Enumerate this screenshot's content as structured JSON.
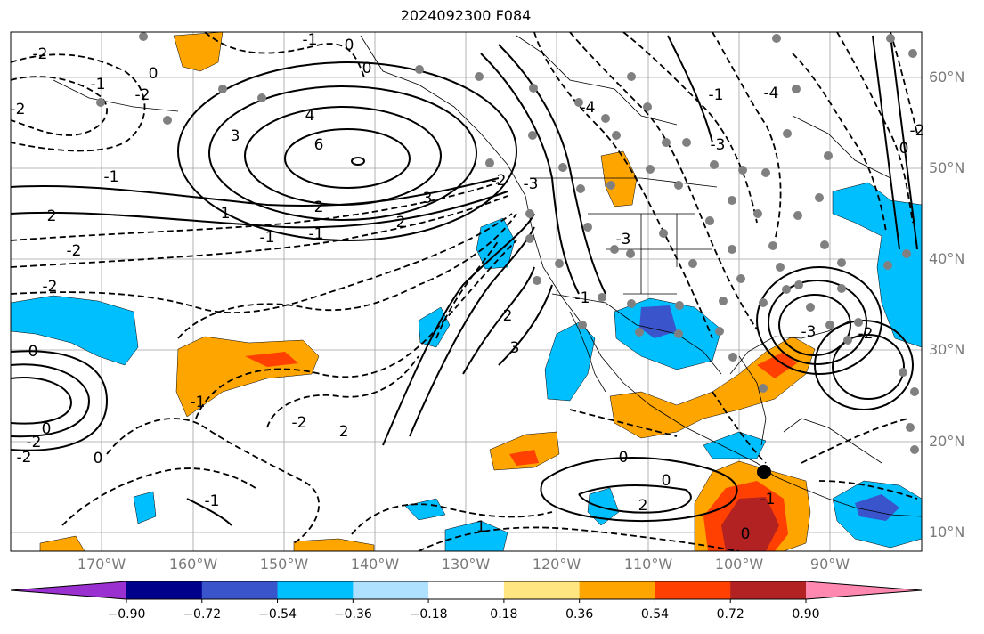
{
  "title": "2024092300 F084",
  "lon_labels": [
    "170°W",
    "160°W",
    "150°W",
    "140°W",
    "130°W",
    "120°W",
    "110°W",
    "100°W",
    "90°W"
  ],
  "lat_labels": [
    "60°N",
    "50°N",
    "40°N",
    "30°N",
    "20°N",
    "10°N"
  ],
  "colorbar": {
    "ticks": [
      "−0.90",
      "−0.72",
      "−0.54",
      "−0.36",
      "−0.18",
      "0.18",
      "0.36",
      "0.54",
      "0.72",
      "0.90"
    ],
    "colors": [
      "#9b30d0",
      "#00008b",
      "#3a55cc",
      "#00bfff",
      "#aee0ff",
      "#ffffff",
      "#ffe680",
      "#ffa500",
      "#ff4000",
      "#b22222",
      "#ff88b0"
    ]
  },
  "contour_labels": [
    "-1",
    "0",
    "-2",
    "-1",
    "-2",
    "0",
    "4",
    "6",
    "3",
    "0",
    "-2",
    "2",
    "-1",
    "1",
    "2",
    "-1",
    "2",
    "3",
    "-1",
    "-4",
    "-2",
    "-3",
    "-3",
    "-1",
    "-4",
    "-3",
    "-2",
    "0",
    "-2",
    "-2",
    "2",
    "3",
    "-1",
    "-1",
    "-2",
    "2",
    "0",
    "0",
    "0",
    "-2",
    "-2",
    "0",
    "0",
    "2",
    "1",
    "-1",
    "0",
    "-1",
    "-3",
    "-2"
  ]
}
